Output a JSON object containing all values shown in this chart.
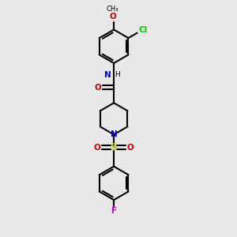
{
  "bg_color": "#e8e8e8",
  "bond_color": "#000000",
  "N_color": "#0000cc",
  "O_color": "#cc0000",
  "S_color": "#cccc00",
  "Cl_color": "#00cc00",
  "F_color": "#cc00cc",
  "line_width": 1.5,
  "figsize": [
    3.0,
    3.0
  ],
  "dpi": 100,
  "xlim": [
    0,
    10
  ],
  "ylim": [
    0,
    10
  ]
}
